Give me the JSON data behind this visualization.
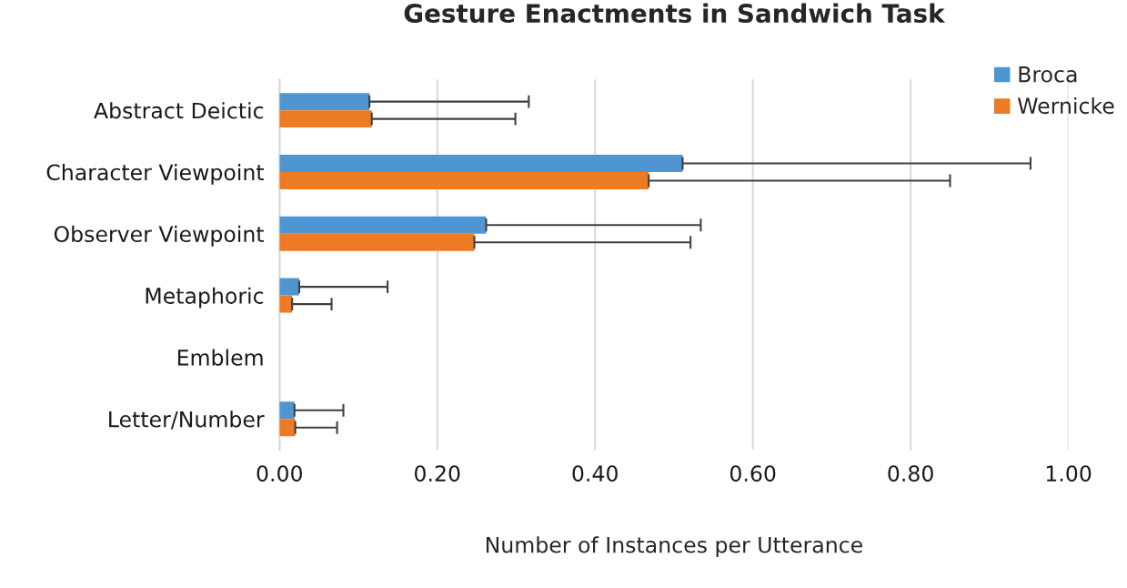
{
  "chart_data": {
    "type": "bar",
    "orientation": "horizontal",
    "title": "Gesture Enactments in Sandwich Task",
    "xlabel": "Number of Instances per Utterance",
    "categories": [
      "Abstract Deictic",
      "Character Viewpoint",
      "Observer Viewpoint",
      "Metaphoric",
      "Emblem",
      "Letter/Number"
    ],
    "series": [
      {
        "name": "Broca",
        "color": "#4f96d1",
        "values": [
          0.114,
          0.511,
          0.262,
          0.025,
          0,
          0.019
        ],
        "errors": [
          [
            0.114,
            0.316
          ],
          [
            0.511,
            0.952
          ],
          [
            0.262,
            0.534
          ],
          [
            0.025,
            0.137
          ],
          null,
          [
            0.019,
            0.081
          ]
        ]
      },
      {
        "name": "Wernicke",
        "color": "#ec7b24",
        "values": [
          0.117,
          0.468,
          0.247,
          0.016,
          0,
          0.02
        ],
        "errors": [
          [
            0.117,
            0.299
          ],
          [
            0.468,
            0.85
          ],
          [
            0.247,
            0.521
          ],
          [
            0.016,
            0.066
          ],
          null,
          [
            0.02,
            0.073
          ]
        ]
      }
    ],
    "xlim": [
      0,
      1.0
    ],
    "xticks": [
      {
        "value": 0,
        "label": "0.00"
      },
      {
        "value": 0.2,
        "label": "0.20"
      },
      {
        "value": 0.4,
        "label": "0.40"
      },
      {
        "value": 0.6,
        "label": "0.60"
      },
      {
        "value": 0.8,
        "label": "0.80"
      },
      {
        "value": 1.0,
        "label": "1.00"
      }
    ],
    "grid": "x",
    "legend": "top right"
  }
}
